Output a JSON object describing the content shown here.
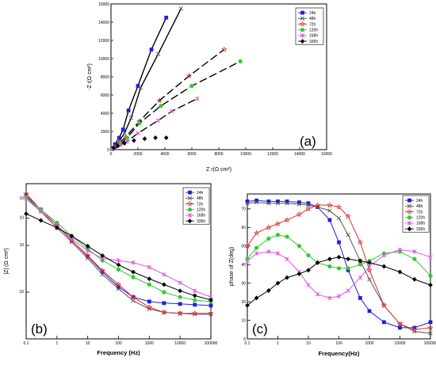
{
  "colors": {
    "24h": "#1f1fe0",
    "48h": "#555555",
    "72h": "#e03030",
    "120h": "#2ecc2e",
    "168h": "#e055e0",
    "336h": "#000000"
  },
  "chart_data": [
    {
      "id": "a",
      "type": "scatter",
      "panel_label": "(a)",
      "xlabel": "Z r(Ω cm²)",
      "ylabel": "-Z i(Ω cm²)",
      "xlim": [
        0,
        16000
      ],
      "ylim": [
        0,
        16000
      ],
      "xticks": [
        0,
        2000,
        4000,
        6000,
        8000,
        10000,
        12000,
        14000,
        16000
      ],
      "yticks": [
        0,
        2000,
        4000,
        6000,
        8000,
        10000,
        12000,
        14000,
        16000
      ],
      "legend": "top-right",
      "series": [
        {
          "name": "24h",
          "marker": "square",
          "line": "solid",
          "x": [
            100,
            300,
            600,
            900,
            1300,
            2000,
            3000,
            4100
          ],
          "y": [
            150,
            600,
            1300,
            2200,
            4300,
            7000,
            11000,
            14500
          ]
        },
        {
          "name": "48h",
          "marker": "cross",
          "line": "solid",
          "x": [
            100,
            300,
            600,
            1000,
            1500,
            2200,
            3500,
            5200
          ],
          "y": [
            100,
            400,
            900,
            1800,
            3500,
            6800,
            10500,
            15500
          ]
        },
        {
          "name": "72h",
          "marker": "star",
          "line": "dashed",
          "x": [
            100,
            300,
            600,
            1100,
            2100,
            3600,
            5800,
            8400
          ],
          "y": [
            80,
            300,
            700,
            1400,
            3100,
            5400,
            8100,
            11000
          ]
        },
        {
          "name": "120h",
          "marker": "circle",
          "line": "dashed",
          "x": [
            100,
            300,
            700,
            1200,
            2100,
            3700,
            6000,
            9600
          ],
          "y": [
            60,
            250,
            600,
            1300,
            2900,
            4800,
            7000,
            9700
          ]
        },
        {
          "name": "168h",
          "marker": "cross-star",
          "line": "dashed",
          "x": [
            100,
            300,
            700,
            1200,
            2000,
            3500,
            4500,
            6400
          ],
          "y": [
            50,
            200,
            500,
            900,
            1800,
            3200,
            4200,
            5600
          ]
        },
        {
          "name": "336h",
          "marker": "diamond",
          "line": "none",
          "x": [
            200,
            500,
            1000,
            1700,
            2500,
            3300,
            4100
          ],
          "y": [
            200,
            400,
            700,
            1000,
            1200,
            1300,
            1300
          ]
        }
      ]
    },
    {
      "id": "b",
      "type": "line",
      "panel_label": "(b)",
      "xlabel": "Frequency (Hz)",
      "ylabel": "|Z| (Ω cm²)",
      "xscale": "log",
      "yscale": "log",
      "xlim": [
        0.1,
        100000
      ],
      "ylim": [
        0.5,
        5
      ],
      "xticks": [
        "0.1",
        "1",
        "10",
        "100",
        "1000",
        "10000",
        "100000"
      ],
      "legend": "top-right",
      "series": [
        {
          "name": "24h",
          "marker": "square",
          "x": [
            0.1,
            0.3,
            1,
            3,
            10,
            30,
            100,
            300,
            1000,
            3000,
            10000,
            30000,
            100000
          ],
          "y": [
            4.2,
            3.4,
            2.7,
            2.15,
            1.7,
            1.35,
            1.08,
            0.93,
            0.87,
            0.85,
            0.84,
            0.83,
            0.82
          ]
        },
        {
          "name": "48h",
          "marker": "cross",
          "x": [
            0.1,
            0.3,
            1,
            3,
            10,
            30,
            100,
            300,
            1000,
            3000,
            10000,
            30000,
            100000
          ],
          "y": [
            4.1,
            3.3,
            2.6,
            2.1,
            1.65,
            1.3,
            1.05,
            0.88,
            0.78,
            0.74,
            0.73,
            0.72,
            0.72
          ]
        },
        {
          "name": "72h",
          "marker": "star",
          "x": [
            0.1,
            0.3,
            1,
            3,
            10,
            30,
            100,
            300,
            1000,
            3000,
            10000,
            30000,
            100000
          ],
          "y": [
            4.3,
            3.4,
            2.7,
            2.15,
            1.72,
            1.38,
            1.12,
            0.93,
            0.8,
            0.74,
            0.73,
            0.73,
            0.73
          ]
        },
        {
          "name": "120h",
          "marker": "circle",
          "x": [
            0.1,
            0.3,
            1,
            3,
            10,
            30,
            100,
            300,
            1000,
            3000,
            10000,
            30000,
            100000
          ],
          "y": [
            4.1,
            3.4,
            2.8,
            2.3,
            1.9,
            1.6,
            1.4,
            1.25,
            1.12,
            1.0,
            0.93,
            0.89,
            0.87
          ]
        },
        {
          "name": "168h",
          "marker": "cross-star",
          "x": [
            0.1,
            0.3,
            1,
            3,
            10,
            30,
            100,
            300,
            1000,
            3000,
            10000,
            30000,
            100000
          ],
          "y": [
            4.0,
            3.3,
            2.7,
            2.2,
            1.85,
            1.65,
            1.6,
            1.55,
            1.45,
            1.3,
            1.15,
            1.02,
            0.93
          ]
        },
        {
          "name": "336h",
          "marker": "diamond",
          "x": [
            0.1,
            0.3,
            1,
            3,
            10,
            30,
            100,
            300,
            1000,
            3000,
            10000,
            30000,
            100000
          ],
          "y": [
            3.2,
            2.9,
            2.6,
            2.3,
            1.98,
            1.72,
            1.5,
            1.35,
            1.22,
            1.12,
            1.02,
            0.95,
            0.89
          ]
        }
      ]
    },
    {
      "id": "c",
      "type": "line",
      "panel_label": "(c)",
      "xlabel": "Frequency(Hz)",
      "ylabel": "phase of Z(deg)",
      "xscale": "log",
      "xlim": [
        0.1,
        100000
      ],
      "ylim": [
        0,
        78
      ],
      "xticks": [
        "0.1",
        "1",
        "10",
        "100",
        "1000",
        "10000",
        "100000"
      ],
      "yticks": [
        0,
        10,
        20,
        30,
        40,
        50,
        60,
        70
      ],
      "legend": "top-right",
      "series": [
        {
          "name": "24h",
          "marker": "square",
          "x": [
            0.1,
            0.2,
            0.5,
            1,
            2,
            5,
            10,
            20,
            50,
            100,
            200,
            500,
            1000,
            3000,
            10000,
            30000,
            100000
          ],
          "y": [
            74,
            74.5,
            74,
            74,
            74,
            73.5,
            73,
            71,
            64,
            52,
            37,
            22,
            15,
            9,
            6,
            6,
            9
          ]
        },
        {
          "name": "48h",
          "marker": "cross",
          "x": [
            0.1,
            0.2,
            0.5,
            1,
            2,
            5,
            10,
            20,
            50,
            100,
            200,
            500,
            1000,
            3000,
            10000,
            30000,
            100000
          ],
          "y": [
            73,
            73.5,
            73,
            73,
            73,
            72.5,
            72,
            71,
            69,
            65,
            56,
            42,
            32,
            18,
            8,
            4,
            3
          ]
        },
        {
          "name": "72h",
          "marker": "star",
          "x": [
            0.1,
            0.2,
            0.5,
            1,
            2,
            5,
            10,
            20,
            50,
            100,
            200,
            500,
            1000,
            3000,
            10000,
            30000,
            100000
          ],
          "y": [
            50,
            57,
            60,
            62,
            64,
            67,
            70,
            72,
            72,
            71,
            66,
            52,
            37,
            18,
            8,
            5,
            6
          ]
        },
        {
          "name": "120h",
          "marker": "circle",
          "x": [
            0.1,
            0.2,
            0.5,
            1,
            2,
            5,
            10,
            20,
            50,
            100,
            200,
            500,
            1000,
            3000,
            10000,
            30000,
            100000
          ],
          "y": [
            43,
            49,
            54,
            56,
            55,
            50,
            45,
            41,
            39,
            38,
            38,
            40,
            42,
            46,
            47,
            43,
            34
          ]
        },
        {
          "name": "168h",
          "marker": "cross-star",
          "x": [
            0.1,
            0.2,
            0.5,
            1,
            2,
            5,
            10,
            20,
            50,
            100,
            200,
            500,
            1000,
            3000,
            10000,
            30000,
            100000
          ],
          "y": [
            42,
            46,
            47,
            46,
            43,
            36,
            29,
            24,
            22,
            23,
            26,
            33,
            39,
            45,
            48,
            47,
            44
          ]
        },
        {
          "name": "336h",
          "marker": "diamond",
          "x": [
            0.1,
            0.2,
            0.5,
            1,
            2,
            5,
            10,
            20,
            50,
            100,
            200,
            500,
            1000,
            3000,
            10000,
            30000,
            100000
          ],
          "y": [
            18,
            22,
            26,
            30,
            33,
            35,
            37,
            41,
            43,
            44,
            43,
            42,
            41,
            39,
            36,
            32,
            29
          ]
        }
      ]
    }
  ]
}
